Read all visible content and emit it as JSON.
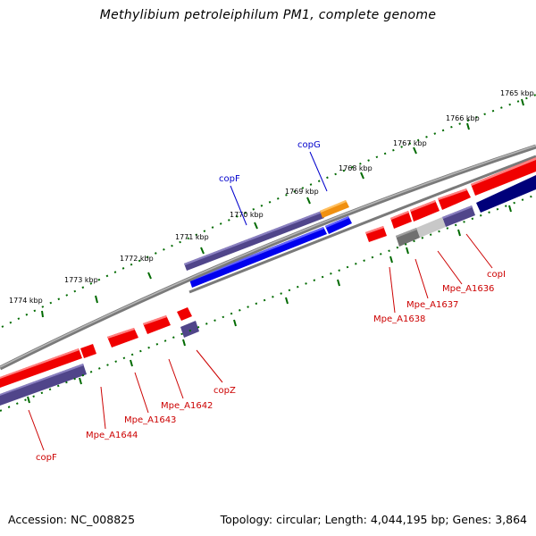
{
  "title": "Methylibium petroleiphilum PM1, complete genome",
  "footer": {
    "accession": "Accession: NC_008825",
    "summary": "Topology: circular; Length: 4,044,195 bp; Genes: 3,864"
  },
  "colors": {
    "forward_gene": "#f00000",
    "reverse_gene": "#50458a",
    "blue_gene": "#0000ee",
    "navy_gene": "#00007a",
    "orange_gene": "#f09010",
    "gray_gene": "#707070",
    "lightgray_gene": "#c8c8c8",
    "backbone": "#7a7a7a",
    "tick": "#006a00",
    "label_red": "#cc0000",
    "label_blue": "#0000cc"
  },
  "scale_labels": [
    "1765 kbp",
    "1766 kbp",
    "1767 kbp",
    "1768 kbp",
    "1769 kbp",
    "1770 kbp",
    "1771 kbp",
    "1772 kbp",
    "1773 kbp",
    "1774 kbp"
  ],
  "gene_labels": {
    "copG": "copG",
    "copF_top": "copF",
    "copI": "copI",
    "Mpe_A1636": "Mpe_A1636",
    "Mpe_A1637": "Mpe_A1637",
    "Mpe_A1638": "Mpe_A1638",
    "copZ": "copZ",
    "Mpe_A1642": "Mpe_A1642",
    "Mpe_A1643": "Mpe_A1643",
    "Mpe_A1644": "Mpe_A1644",
    "copF_bottom": "copF"
  }
}
